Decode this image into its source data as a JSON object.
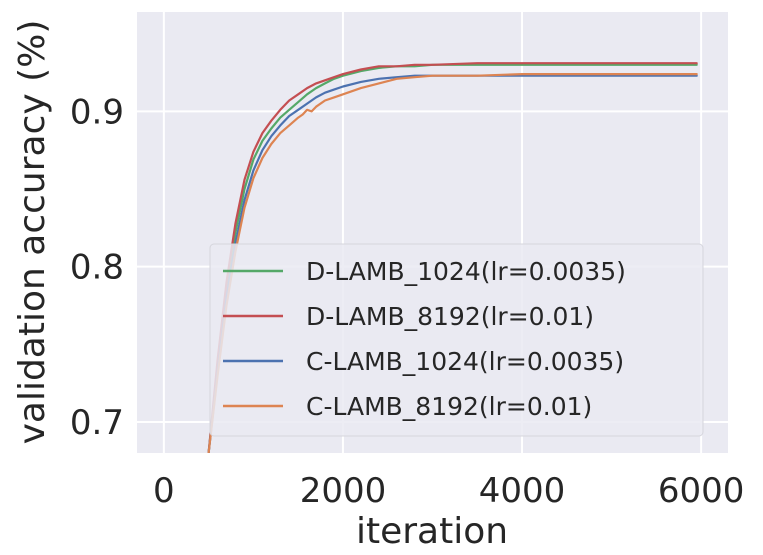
{
  "chart_data": {
    "type": "line",
    "xlabel": "iteration",
    "ylabel": "validation accuracy (%)",
    "xlim": [
      -300,
      6300
    ],
    "ylim": [
      0.68,
      0.964
    ],
    "xticks": [
      0,
      2000,
      4000,
      6000
    ],
    "yticks": [
      0.7,
      0.8,
      0.9
    ],
    "xtick_labels": [
      "0",
      "2000",
      "4000",
      "6000"
    ],
    "ytick_labels": [
      "0.7",
      "0.8",
      "0.9"
    ],
    "grid": true,
    "legend_position": "lower right",
    "series": [
      {
        "name": "D-LAMB_1024(lr=0.0035)",
        "color": "#55a868",
        "x": [
          500,
          600,
          700,
          800,
          900,
          1000,
          1100,
          1200,
          1300,
          1400,
          1500,
          1600,
          1700,
          1800,
          1900,
          2000,
          2200,
          2400,
          2600,
          2800,
          3000,
          3500,
          4000,
          4500,
          5000,
          5500,
          5950
        ],
        "y": [
          0.68,
          0.735,
          0.785,
          0.822,
          0.85,
          0.869,
          0.881,
          0.889,
          0.896,
          0.901,
          0.906,
          0.911,
          0.915,
          0.918,
          0.921,
          0.923,
          0.926,
          0.928,
          0.929,
          0.929,
          0.93,
          0.93,
          0.93,
          0.93,
          0.93,
          0.93,
          0.93
        ]
      },
      {
        "name": "D-LAMB_8192(lr=0.01)",
        "color": "#c44e52",
        "x": [
          500,
          600,
          700,
          800,
          900,
          1000,
          1100,
          1200,
          1300,
          1400,
          1500,
          1600,
          1700,
          1800,
          1900,
          2000,
          2200,
          2400,
          2600,
          2800,
          3000,
          3500,
          4000,
          4500,
          5000,
          5500,
          5950
        ],
        "y": [
          0.68,
          0.74,
          0.79,
          0.828,
          0.856,
          0.874,
          0.886,
          0.894,
          0.901,
          0.907,
          0.911,
          0.915,
          0.918,
          0.92,
          0.922,
          0.924,
          0.927,
          0.929,
          0.929,
          0.93,
          0.93,
          0.931,
          0.931,
          0.931,
          0.931,
          0.931,
          0.931
        ]
      },
      {
        "name": "C-LAMB_1024(lr=0.0035)",
        "color": "#4c72b0",
        "x": [
          500,
          600,
          700,
          800,
          900,
          1000,
          1100,
          1200,
          1300,
          1400,
          1500,
          1600,
          1700,
          1800,
          1900,
          2000,
          2200,
          2400,
          2600,
          2800,
          3000,
          3500,
          4000,
          4500,
          5000,
          5500,
          5950
        ],
        "y": [
          0.68,
          0.732,
          0.78,
          0.815,
          0.843,
          0.862,
          0.875,
          0.884,
          0.891,
          0.897,
          0.901,
          0.905,
          0.909,
          0.912,
          0.914,
          0.916,
          0.919,
          0.921,
          0.922,
          0.923,
          0.923,
          0.923,
          0.923,
          0.923,
          0.923,
          0.923,
          0.923
        ]
      },
      {
        "name": "C-LAMB_8192(lr=0.01)",
        "color": "#dd8452",
        "x": [
          500,
          600,
          700,
          800,
          900,
          1000,
          1100,
          1200,
          1300,
          1400,
          1500,
          1550,
          1600,
          1650,
          1700,
          1800,
          1900,
          2000,
          2200,
          2400,
          2600,
          2800,
          3000,
          3500,
          4000,
          4500,
          5000,
          5500,
          5950
        ],
        "y": [
          0.68,
          0.73,
          0.775,
          0.81,
          0.838,
          0.857,
          0.87,
          0.879,
          0.886,
          0.891,
          0.896,
          0.898,
          0.901,
          0.9,
          0.903,
          0.907,
          0.909,
          0.911,
          0.915,
          0.918,
          0.921,
          0.922,
          0.923,
          0.923,
          0.924,
          0.924,
          0.924,
          0.924,
          0.924
        ]
      }
    ]
  }
}
